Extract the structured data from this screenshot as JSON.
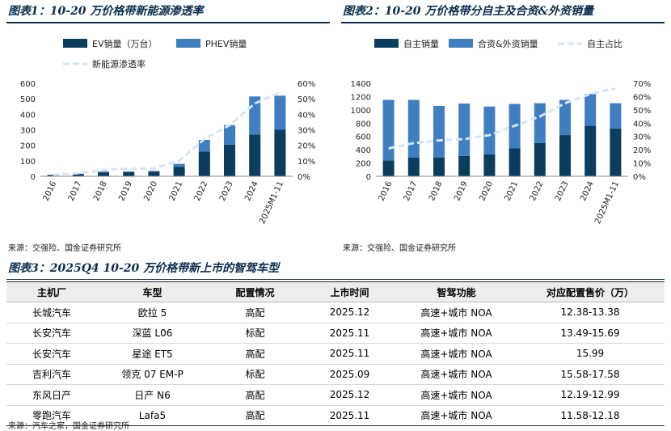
{
  "figure1": {
    "title": "图表1：10-20 万价格带新能源渗透率",
    "source": "来源：交强险、国金证券研究所",
    "legend": {
      "ev": "EV销量（万台）",
      "phev": "PHEV销量",
      "rate": "新能源渗透率"
    },
    "colors": {
      "ev": "#0b3d5e",
      "phev": "#3f7fc1",
      "rate": "#d4e6f3"
    }
  },
  "figure2": {
    "title": "图表2：10-20 万价格带分自主及合资&外资销量",
    "source": "来源：交强险、国金证券研究所",
    "legend": {
      "own": "自主销量",
      "jv": "合资&外资销量",
      "share": "自主占比"
    },
    "colors": {
      "own": "#0b3d5e",
      "jv": "#3f7fc1",
      "share": "#d4e6f3"
    }
  },
  "table3": {
    "title": "图表3：2025Q4 10-20 万价格带新上市的智驾车型",
    "source": "来源：汽车之家，国金证券研究所",
    "headers": [
      "主机厂",
      "车型",
      "配置情况",
      "上市时间",
      "智驾功能",
      "对应配置售价（万）"
    ],
    "rows": [
      [
        "长城汽车",
        "欧拉 5",
        "高配",
        "2025.12",
        "高速+城市 NOA",
        "12.38-13.38"
      ],
      [
        "长安汽车",
        "深蓝 L06",
        "标配",
        "2025.11",
        "高速+城市 NOA",
        "13.49-15.69"
      ],
      [
        "长安汽车",
        "星途 ET5",
        "高配",
        "2025.11",
        "高速+城市 NOA",
        "15.99"
      ],
      [
        "吉利汽车",
        "领克 07 EM-P",
        "标配",
        "2025.09",
        "高速+城市 NOA",
        "15.58-17.58"
      ],
      [
        "东风日产",
        "日产 N6",
        "高配",
        "2025.12",
        "高速+城市 NOA",
        "12.19-12.99"
      ],
      [
        "零跑汽车",
        "Lafa5",
        "高配",
        "2025.11",
        "高速+城市 NOA",
        "11.58-12.18"
      ]
    ]
  },
  "chart_data": [
    {
      "type": "bar",
      "stacked": true,
      "categories": [
        "2016",
        "2017",
        "2018",
        "2019",
        "2020",
        "2021",
        "2022",
        "2023",
        "2024",
        "2025M1-11"
      ],
      "series": [
        {
          "name": "EV销量（万台）",
          "values": [
            8,
            13,
            25,
            27,
            30,
            60,
            160,
            205,
            270,
            300
          ]
        },
        {
          "name": "PHEV销量",
          "values": [
            2,
            4,
            6,
            5,
            5,
            20,
            75,
            125,
            245,
            220
          ]
        }
      ],
      "secondary_series": {
        "name": "新能源渗透率",
        "values": [
          1.0,
          2.0,
          4.0,
          5.0,
          5.0,
          10.0,
          24.0,
          33.0,
          47.0,
          54.0
        ]
      },
      "yticks": [
        "0",
        "100",
        "200",
        "300",
        "400",
        "500",
        "600"
      ],
      "y2ticks": [
        "0%",
        "10%",
        "20%",
        "30%",
        "40%",
        "50%",
        "60%"
      ],
      "ylim": [
        0,
        600
      ],
      "y2lim": [
        0,
        60
      ],
      "legend": "top"
    },
    {
      "type": "bar",
      "stacked": true,
      "categories": [
        "2016",
        "2017",
        "2018",
        "2019",
        "2020",
        "2021",
        "2022",
        "2023",
        "2024",
        "2025M1-11"
      ],
      "series": [
        {
          "name": "自主销量",
          "values": [
            240,
            280,
            280,
            305,
            330,
            420,
            500,
            620,
            760,
            720
          ]
        },
        {
          "name": "合资&外资销量",
          "values": [
            910,
            870,
            780,
            790,
            720,
            670,
            600,
            530,
            480,
            380
          ]
        }
      ],
      "secondary_series": {
        "name": "自主占比",
        "values": [
          21,
          25,
          27,
          28,
          31,
          38,
          45,
          55,
          62,
          66
        ]
      },
      "yticks": [
        "0",
        "200",
        "400",
        "600",
        "800",
        "1000",
        "1200",
        "1400"
      ],
      "y2ticks": [
        "0%",
        "10%",
        "20%",
        "30%",
        "40%",
        "50%",
        "60%",
        "70%"
      ],
      "ylim": [
        0,
        1400
      ],
      "y2lim": [
        0,
        70
      ],
      "legend": "top"
    }
  ]
}
